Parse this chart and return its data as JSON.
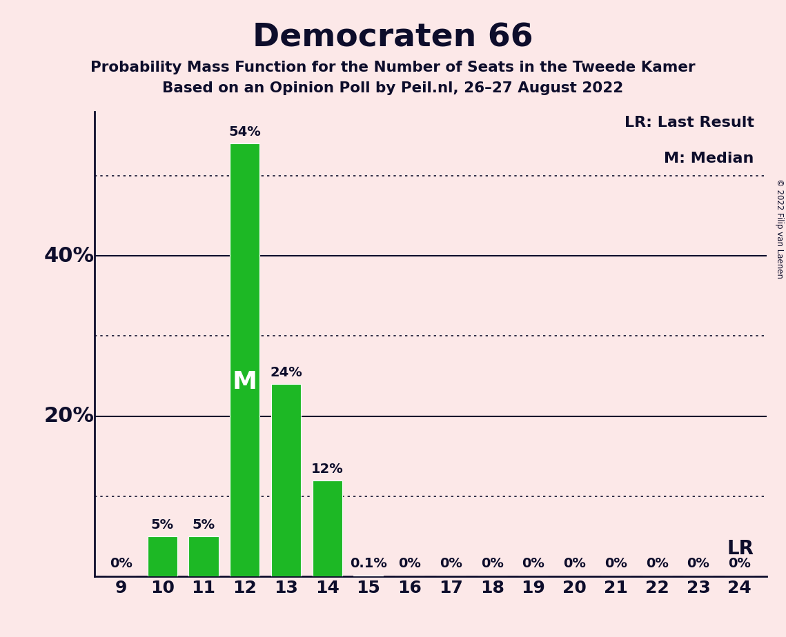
{
  "title": "Democraten 66",
  "subtitle1": "Probability Mass Function for the Number of Seats in the Tweede Kamer",
  "subtitle2": "Based on an Opinion Poll by Peil.nl, 26–27 August 2022",
  "copyright": "© 2022 Filip van Laenen",
  "categories": [
    9,
    10,
    11,
    12,
    13,
    14,
    15,
    16,
    17,
    18,
    19,
    20,
    21,
    22,
    23,
    24
  ],
  "values": [
    0,
    5,
    5,
    54,
    24,
    12,
    0.1,
    0,
    0,
    0,
    0,
    0,
    0,
    0,
    0,
    0
  ],
  "labels": [
    "0%",
    "5%",
    "5%",
    "54%",
    "24%",
    "12%",
    "0.1%",
    "0%",
    "0%",
    "0%",
    "0%",
    "0%",
    "0%",
    "0%",
    "0%",
    "0%"
  ],
  "bar_color": "#1db825",
  "background_color": "#fce8e8",
  "text_color": "#0d0d2b",
  "median_seat": 12,
  "lr_seat": 24,
  "ylim": [
    0,
    58
  ],
  "solid_hlines": [
    20,
    40
  ],
  "solid_ytick_labels": [
    [
      20,
      "20%"
    ],
    [
      40,
      "40%"
    ]
  ],
  "dotted_hlines": [
    10,
    30,
    50
  ],
  "legend_lr": "LR: Last Result",
  "legend_m": "M: Median",
  "lr_label": "LR",
  "m_label": "M",
  "label_fontsize": 14,
  "tick_fontsize": 18,
  "ytick_fontsize": 22
}
